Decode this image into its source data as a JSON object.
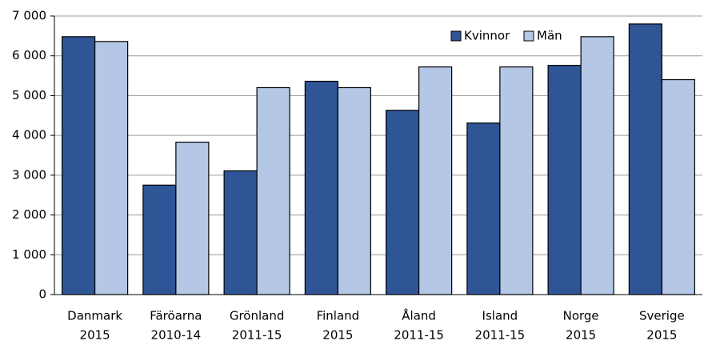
{
  "chart_data": {
    "type": "bar",
    "categories": [
      [
        "Danmark",
        "2015"
      ],
      [
        "Färöarna",
        "2010-14"
      ],
      [
        "Grönland",
        "2011-15"
      ],
      [
        "Finland",
        "2015"
      ],
      [
        "Åland",
        "2011-15"
      ],
      [
        "Island",
        "2011-15"
      ],
      [
        "Norge",
        "2015"
      ],
      [
        "Sverige",
        "2015"
      ]
    ],
    "series": [
      {
        "name": "Kvinnor",
        "color": "#2f5597",
        "values": [
          6480,
          2750,
          3110,
          5360,
          4630,
          4310,
          5760,
          6800
        ]
      },
      {
        "name": "Män",
        "color": "#b4c7e7",
        "values": [
          6360,
          3830,
          5200,
          5200,
          5720,
          5720,
          6480,
          5400
        ]
      }
    ],
    "ylim": [
      0,
      7000
    ],
    "yticks": [
      0,
      {
        "value": 1000,
        "label": "1 000"
      },
      {
        "value": 2000,
        "label": "2 000"
      },
      {
        "value": 3000,
        "label": "3 000"
      },
      {
        "value": 4000,
        "label": "4 000"
      },
      {
        "value": 5000,
        "label": "5 000"
      },
      {
        "value": 6000,
        "label": "6 000"
      },
      {
        "value": 7000,
        "label": "7 000"
      }
    ],
    "grid": true,
    "legend": "top-right"
  }
}
